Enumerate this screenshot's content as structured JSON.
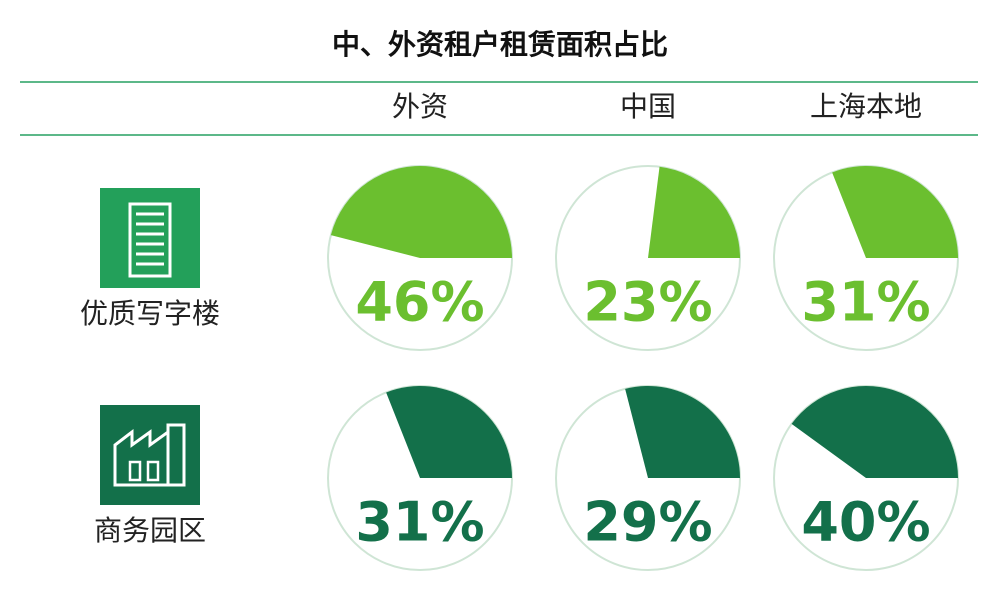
{
  "chart_data": {
    "type": "pie",
    "title": "中、外资租户租赁面积占比",
    "categories": [
      "外资",
      "中国",
      "上海本地"
    ],
    "series": [
      {
        "name": "优质写字楼",
        "color": "#6bbf2f",
        "values": [
          46,
          23,
          31
        ],
        "value_labels": [
          "46%",
          "23%",
          "31%"
        ]
      },
      {
        "name": "商务园区",
        "color": "#13704a",
        "values": [
          31,
          29,
          40
        ],
        "value_labels": [
          "31%",
          "29%",
          "40%"
        ]
      }
    ]
  }
}
